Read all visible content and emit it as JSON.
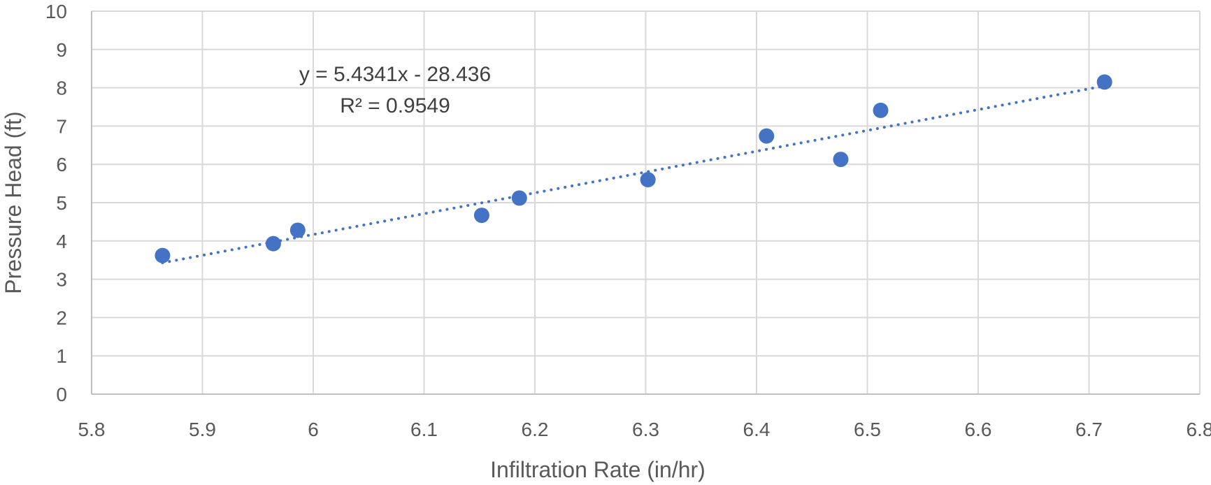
{
  "chart_data": {
    "type": "scatter",
    "title": "",
    "xlabel": "Infiltration Rate (in/hr)",
    "ylabel": "Pressure Head (ft)",
    "xlim": [
      5.8,
      6.8
    ],
    "ylim": [
      0,
      10
    ],
    "xticks": [
      5.8,
      5.9,
      6,
      6.1,
      6.2,
      6.3,
      6.4,
      6.5,
      6.6,
      6.7,
      6.8
    ],
    "yticks": [
      0,
      1,
      2,
      3,
      4,
      5,
      6,
      7,
      8,
      9,
      10
    ],
    "grid": true,
    "legend": "none",
    "marker_color": "#4472c4",
    "series": [
      {
        "points": [
          {
            "x": 5.864,
            "y": 3.62
          },
          {
            "x": 5.964,
            "y": 3.93
          },
          {
            "x": 5.986,
            "y": 4.28
          },
          {
            "x": 6.152,
            "y": 4.67
          },
          {
            "x": 6.186,
            "y": 5.12
          },
          {
            "x": 6.302,
            "y": 5.6
          },
          {
            "x": 6.409,
            "y": 6.74
          },
          {
            "x": 6.476,
            "y": 6.13
          },
          {
            "x": 6.512,
            "y": 7.41
          },
          {
            "x": 6.714,
            "y": 8.15
          }
        ]
      }
    ],
    "trendline": {
      "type": "linear",
      "style": "dotted",
      "slope": 5.4341,
      "intercept": -28.436,
      "x_range": [
        5.864,
        6.714
      ],
      "equation_label": "y = 5.4341x - 28.436",
      "r2_label": "R² = 0.9549"
    }
  }
}
